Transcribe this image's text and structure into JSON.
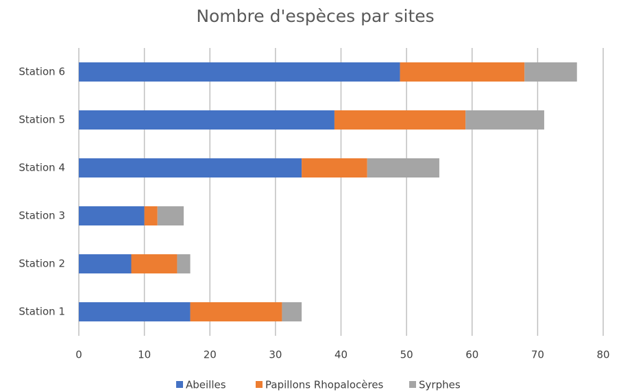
{
  "chart_data": {
    "type": "stacked_barh",
    "title": "Nombre d'espèces par sites",
    "categories": [
      "Station 6",
      "Station 5",
      "Station 4",
      "Station 3",
      "Station 2",
      "Station 1"
    ],
    "series": [
      {
        "name": "Abeilles",
        "color": "#4472c4",
        "values": [
          49,
          39,
          34,
          10,
          8,
          17
        ]
      },
      {
        "name": "Papillons Rhopalocères",
        "color": "#ed7d31",
        "values": [
          19,
          20,
          10,
          2,
          7,
          14
        ]
      },
      {
        "name": "Syrphes",
        "color": "#a5a5a5",
        "values": [
          8,
          12,
          11,
          4,
          2,
          3
        ]
      }
    ],
    "xlim": [
      0,
      80
    ],
    "xticks": [
      0,
      10,
      20,
      30,
      40,
      50,
      60,
      70,
      80
    ],
    "grid": true,
    "legend": "bottom"
  }
}
